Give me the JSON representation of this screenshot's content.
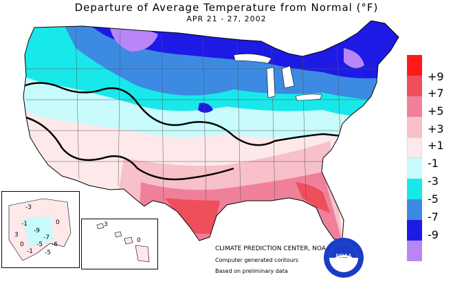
{
  "title": "Departure of Average Temperature from Normal (°F)",
  "subtitle": "APR 21 - 27, 2002",
  "legend": [
    {
      "label": "+9",
      "color": "#ff1a1a"
    },
    {
      "label": "+7",
      "color": "#ee4f5a"
    },
    {
      "label": "+5",
      "color": "#f0809a"
    },
    {
      "label": "+3",
      "color": "#f8c0c8"
    },
    {
      "label": "+1",
      "color": "#fde8ea"
    },
    {
      "label": "-1",
      "color": "#c8fbfb"
    },
    {
      "label": "-3",
      "color": "#19e8ea"
    },
    {
      "label": "-5",
      "color": "#3c8ae2"
    },
    {
      "label": "-7",
      "color": "#1e1ae6"
    },
    {
      "label": "-9",
      "color": "#b886f6"
    }
  ],
  "credit": {
    "line1": "CLIMATE PREDICTION CENTER, NOAA",
    "line2": "Computer generated contours",
    "line3": "Based on preliminary data"
  },
  "alaska_labels": [
    "-3",
    "-1",
    "-9",
    "-7",
    "-5",
    "-6",
    "0",
    "3",
    "0",
    "-1",
    "-5"
  ],
  "hawaii_labels": [
    "3",
    "0"
  ],
  "logo_text": "NOAA"
}
